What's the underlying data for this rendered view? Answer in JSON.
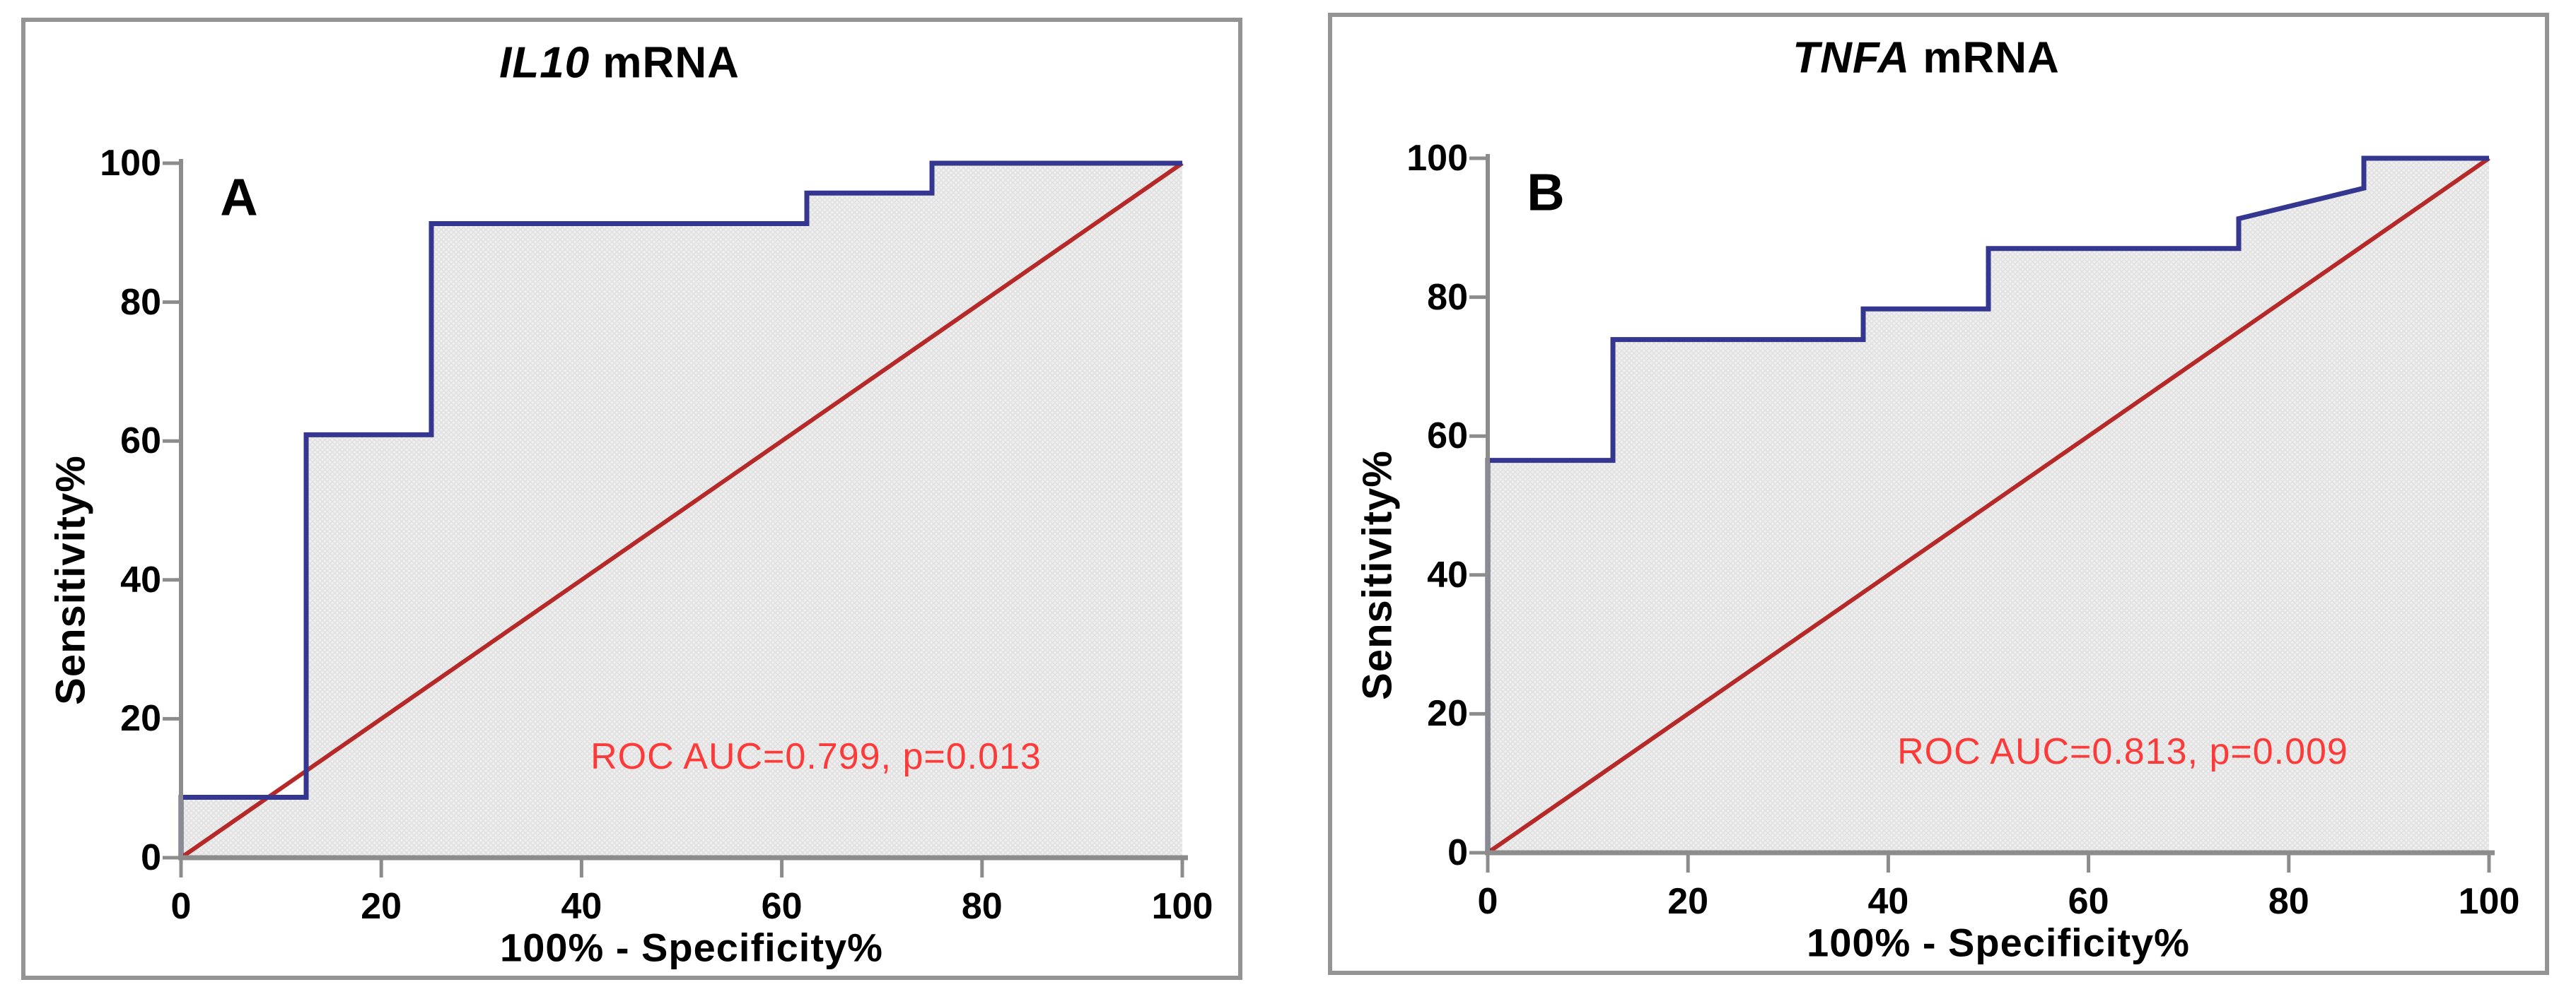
{
  "colors": {
    "curve": "#35368f",
    "diagonal": "#b52a28",
    "fill_base": "#f0efef",
    "fill_hatch": "#e2e1e1",
    "axis": "#8c8c8c",
    "annotation_red": "#fb3a3a",
    "frame": "#949494",
    "text": "#000000"
  },
  "chart_data": [
    {
      "type": "line",
      "panel": "A",
      "title": "IL10 mRNA",
      "title_gene": "IL10",
      "title_suffix": " mRNA",
      "xlabel": "100% - Specificity%",
      "ylabel": "Sensitivity%",
      "xlim": [
        0,
        100
      ],
      "ylim": [
        0,
        100
      ],
      "x_ticks": [
        0,
        20,
        40,
        60,
        80,
        100
      ],
      "y_ticks": [
        0,
        20,
        40,
        60,
        80,
        100
      ],
      "grid": false,
      "legend": "none",
      "series": [
        {
          "name": "ROC curve",
          "color": "#35368f",
          "fill_under": true,
          "points": [
            [
              0,
              0
            ],
            [
              0,
              8.7
            ],
            [
              12.5,
              8.7
            ],
            [
              12.5,
              60.9
            ],
            [
              25,
              60.9
            ],
            [
              25,
              91.3
            ],
            [
              62.5,
              91.3
            ],
            [
              62.5,
              95.7
            ],
            [
              75,
              95.7
            ],
            [
              75,
              100
            ],
            [
              100,
              100
            ]
          ]
        },
        {
          "name": "Reference diagonal",
          "color": "#b52a28",
          "fill_under": false,
          "points": [
            [
              0,
              0
            ],
            [
              100,
              100
            ]
          ]
        }
      ],
      "annotation": {
        "text": "ROC AUC=0.799, p=0.013",
        "x": 63,
        "y": 15,
        "color": "#fb3a3a"
      },
      "auc": 0.799,
      "p_value": 0.013
    },
    {
      "type": "line",
      "panel": "B",
      "title": "TNFA mRNA",
      "title_gene": "TNFA",
      "title_suffix": " mRNA",
      "xlabel": "100% - Specificity%",
      "ylabel": "Sensitivity%",
      "xlim": [
        0,
        100
      ],
      "ylim": [
        0,
        100
      ],
      "x_ticks": [
        0,
        20,
        40,
        60,
        80,
        100
      ],
      "y_ticks": [
        0,
        20,
        40,
        60,
        80,
        100
      ],
      "grid": false,
      "legend": "none",
      "series": [
        {
          "name": "ROC curve",
          "color": "#35368f",
          "fill_under": true,
          "points": [
            [
              0,
              0
            ],
            [
              0,
              56.5
            ],
            [
              12.5,
              56.5
            ],
            [
              12.5,
              73.9
            ],
            [
              37.5,
              73.9
            ],
            [
              37.5,
              78.3
            ],
            [
              50,
              78.3
            ],
            [
              50,
              87
            ],
            [
              75,
              87
            ],
            [
              75,
              91.3
            ],
            [
              87.5,
              95.7
            ],
            [
              87.5,
              100
            ],
            [
              100,
              100
            ]
          ]
        },
        {
          "name": "Reference diagonal",
          "color": "#b52a28",
          "fill_under": false,
          "points": [
            [
              0,
              0
            ],
            [
              100,
              100
            ]
          ]
        }
      ],
      "annotation": {
        "text": "ROC AUC=0.813, p=0.009",
        "x": 63,
        "y": 14,
        "color": "#fb3a3a"
      },
      "auc": 0.813,
      "p_value": 0.009
    }
  ]
}
